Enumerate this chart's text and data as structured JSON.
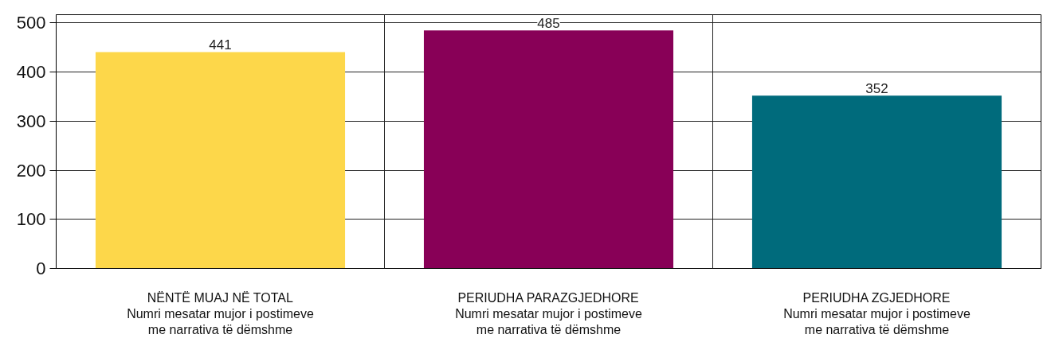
{
  "chart_data": {
    "type": "bar",
    "categories": [
      "NËNTË MUAJ NË TOTAL\nNumri mesatar mujor i postimeve\nme narrativa të dëmshme",
      "PERIUDHA PARAZGJEDHORE\nNumri mesatar mujor i postimeve\nme narrativa të dëmshme",
      "PERIUDHA ZGJEDHORE\nNumri mesatar mujor i postimeve\nme narrativa të dëmshme"
    ],
    "values": [
      441,
      485,
      352
    ],
    "colors": [
      "#fdd74a",
      "#880057",
      "#006b7c"
    ],
    "ylim": [
      0,
      517
    ],
    "yticks": [
      0,
      100,
      200,
      300,
      400,
      500
    ],
    "grid": true,
    "data_labels": true
  }
}
